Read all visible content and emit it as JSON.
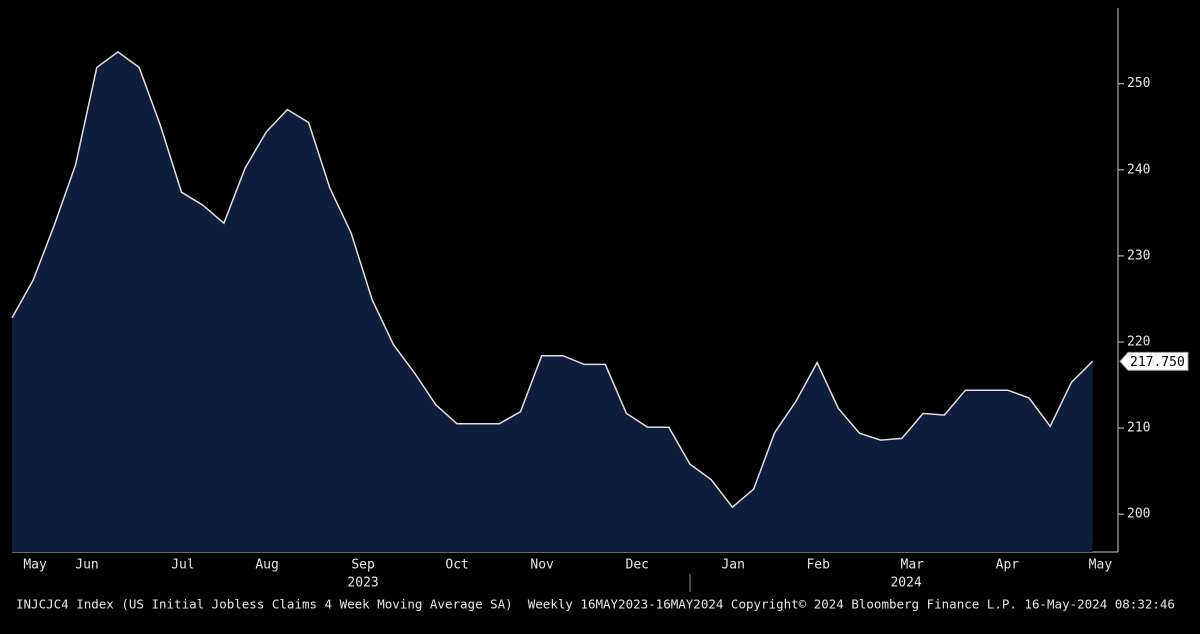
{
  "chart_data": {
    "type": "area",
    "color": "#0d1d3b",
    "line_color": "#e0e0e0",
    "values": [
      222.8,
      227.2,
      233.6,
      240.6,
      251.9,
      253.7,
      251.9,
      245.2,
      237.4,
      235.9,
      233.8,
      240.2,
      244.4,
      247.0,
      245.5,
      237.9,
      232.7,
      224.9,
      219.7,
      216.4,
      212.7,
      210.5,
      210.5,
      210.5,
      211.9,
      218.4,
      218.4,
      217.4,
      217.4,
      211.7,
      210.1,
      210.1,
      205.8,
      204.0,
      200.8,
      202.9,
      209.5,
      213.1,
      217.6,
      212.3,
      209.4,
      208.6,
      208.8,
      211.7,
      211.5,
      214.4,
      214.4,
      214.4,
      213.5,
      210.2,
      215.3,
      217.75
    ],
    "last_value_label": "217.750",
    "xlim": [
      0,
      52.2
    ],
    "xticks": [
      {
        "value": 1.09,
        "label": "May"
      },
      {
        "value": 3.54,
        "label": "Jun"
      },
      {
        "value": 8.07,
        "label": "Jul"
      },
      {
        "value": 12.04,
        "label": "Aug"
      },
      {
        "value": 16.57,
        "label": "Sep"
      },
      {
        "value": 21.01,
        "label": "Oct"
      },
      {
        "value": 25.02,
        "label": "Nov"
      },
      {
        "value": 29.51,
        "label": "Dec"
      },
      {
        "value": 34.04,
        "label": "Jan"
      },
      {
        "value": 38.05,
        "label": "Feb"
      },
      {
        "value": 42.49,
        "label": "Mar"
      },
      {
        "value": 46.98,
        "label": "Apr"
      },
      {
        "value": 51.37,
        "label": "May"
      }
    ],
    "years": [
      {
        "value": 16.57,
        "label": "2023"
      },
      {
        "value": 42.2,
        "label": "2024"
      }
    ],
    "ylim": [
      195.6,
      258.8
    ],
    "yticks": [
      200,
      210,
      220,
      230,
      240,
      250
    ],
    "footer": "INJCJC4 Index (US Initial Jobless Claims 4 Week Moving Average SA)  Weekly 16MAY2023-16MAY2024 Copyright© 2024 Bloomberg Finance L.P. 16-May-2024 08:32:46"
  }
}
